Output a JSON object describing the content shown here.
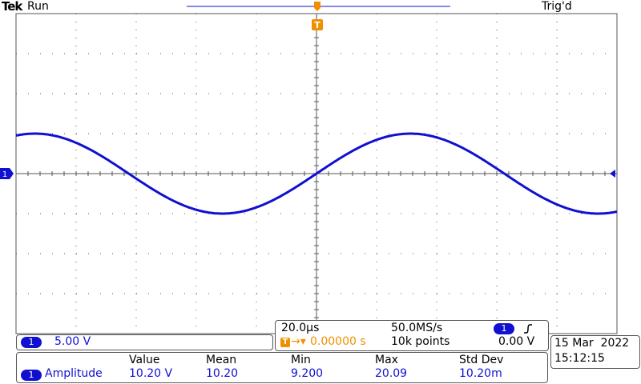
{
  "header": {
    "brand": "Tek",
    "run_state": "Run",
    "trigger_status": "Trig'd"
  },
  "channel": {
    "number": "1",
    "scale": "5.00 V"
  },
  "timebase": {
    "scale": "20.0µs",
    "sample_rate": "50.0MS/s",
    "trigger_position": "0.00000 s",
    "record_length": "10k points",
    "trigger_level": "0.00 V"
  },
  "datetime": {
    "date": "15 Mar  2022",
    "time": "15:12:15"
  },
  "measurements": {
    "headers": [
      "Value",
      "Mean",
      "Min",
      "Max",
      "Std Dev"
    ],
    "row": {
      "name": "Amplitude",
      "values": [
        "10.20 V",
        "10.20",
        "9.200",
        "20.09",
        "10.20m"
      ]
    }
  },
  "waveform": {
    "color": "#1010d0",
    "volts_per_div": 5.0,
    "us_per_div": 20.0,
    "amplitude_divs": 1.0,
    "period_divs": 6.25,
    "phase_at_center": 0
  },
  "colors": {
    "trace": "#1010d0",
    "trigger": "#f09000",
    "grid": "#555555"
  },
  "icons": {
    "trigger_marker": "trigger-T-icon",
    "rising_edge": "rising-edge-icon"
  }
}
